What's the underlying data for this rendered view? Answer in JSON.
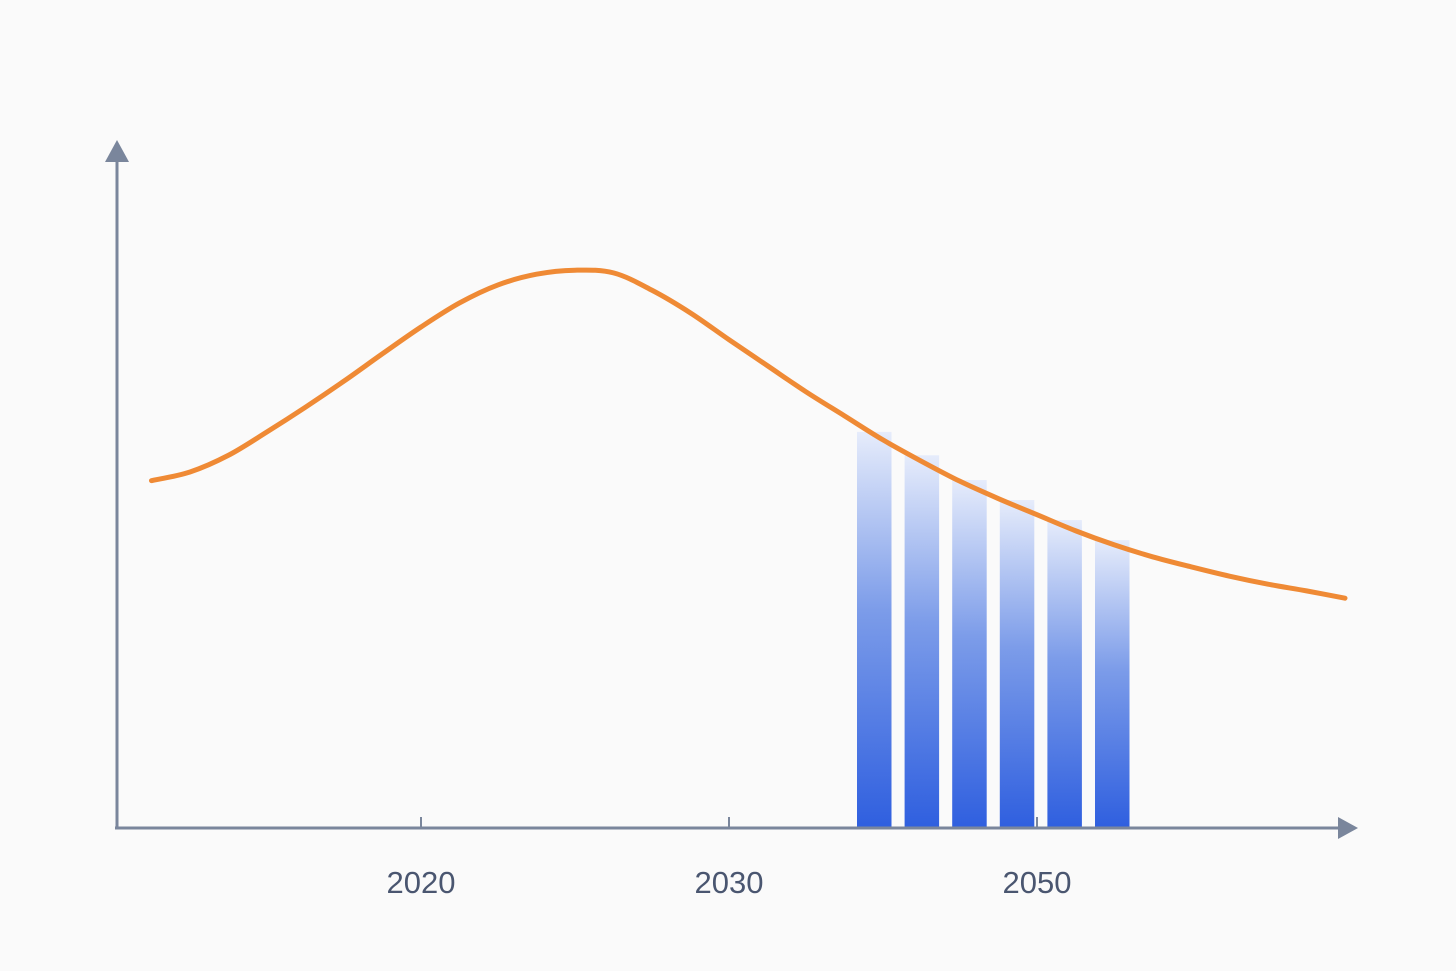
{
  "chart_data": [
    {
      "type": "line",
      "color": "#ef8a35",
      "categories": [
        null,
        null,
        null,
        null,
        null,
        null,
        null,
        "2020",
        null,
        null,
        null,
        null,
        null,
        null,
        null,
        "2030",
        null,
        null,
        null,
        null,
        null,
        null,
        null,
        "2050",
        null,
        null,
        null,
        null,
        null,
        null,
        null,
        null
      ],
      "values": [
        52.0,
        53.3,
        55.8,
        59.3,
        63.0,
        66.9,
        71.0,
        75.0,
        78.6,
        81.3,
        82.9,
        83.5,
        83.1,
        80.5,
        77.1,
        73.1,
        69.2,
        65.3,
        61.7,
        58.1,
        54.9,
        51.9,
        49.3,
        46.9,
        44.5,
        42.4,
        40.6,
        39.1,
        37.7,
        36.5,
        35.5,
        34.4
      ],
      "ylim": [
        0,
        100
      ]
    },
    {
      "type": "bar",
      "color": "#3563e0",
      "categories": [
        null,
        null,
        null,
        null,
        null,
        null
      ],
      "values": [
        59.3,
        55.8,
        52.1,
        49.1,
        46.1,
        43.1
      ],
      "ylim": [
        0,
        100
      ]
    }
  ]
}
